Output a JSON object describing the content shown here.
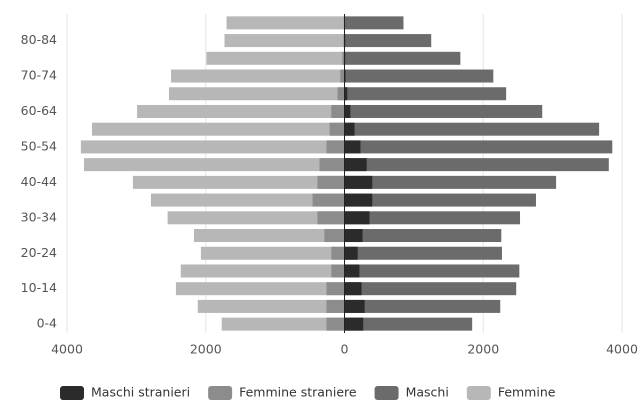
{
  "chart_data": {
    "type": "bar",
    "orientation": "horizontal",
    "categories": [
      "0-4",
      null,
      "10-14",
      null,
      "20-24",
      null,
      "30-34",
      null,
      "40-44",
      null,
      "50-54",
      null,
      "60-64",
      null,
      "70-74",
      null,
      "80-84",
      null
    ],
    "series": [
      {
        "name": "Maschi stranieri",
        "color": "#2b2b2b",
        "values": [
          270,
          290,
          245,
          215,
          190,
          260,
          360,
          400,
          400,
          320,
          230,
          145,
          85,
          40,
          15,
          10,
          10,
          5
        ]
      },
      {
        "name": "Femmine straniere",
        "color": "#8c8c8c",
        "values": [
          -260,
          -260,
          -260,
          -190,
          -190,
          -290,
          -390,
          -460,
          -390,
          -360,
          -260,
          -215,
          -190,
          -100,
          -60,
          -30,
          -15,
          -10
        ]
      },
      {
        "name": "Maschi",
        "color": "#6b6b6b",
        "values": [
          1840,
          2245,
          2475,
          2520,
          2270,
          2260,
          2530,
          2760,
          3050,
          3810,
          3860,
          3670,
          2850,
          2330,
          2145,
          1670,
          1250,
          850
        ]
      },
      {
        "name": "Femmine",
        "color": "#b7b7b7",
        "values": [
          -1770,
          -2115,
          -2430,
          -2360,
          -2070,
          -2170,
          -2550,
          -2790,
          -3050,
          -3755,
          -3800,
          -3640,
          -2990,
          -2530,
          -2500,
          -1990,
          -1730,
          -1700
        ]
      }
    ],
    "xlim": [
      -4000,
      4000
    ],
    "xticks": [
      {
        "value": -4000,
        "label": "4000"
      },
      {
        "value": -2000,
        "label": "2000"
      },
      0,
      2000,
      4000
    ],
    "grid": true
  }
}
